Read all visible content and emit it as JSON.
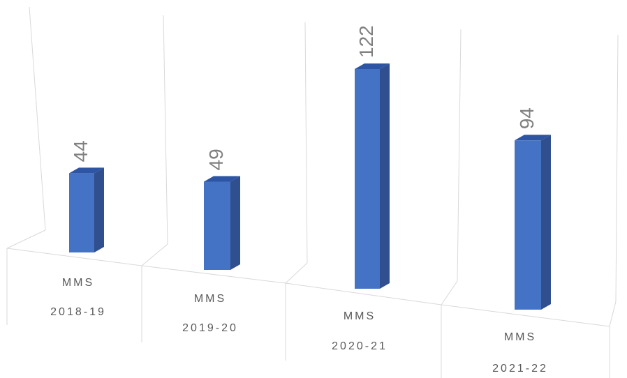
{
  "chart_data": {
    "type": "bar",
    "categories": [
      [
        "MMS",
        "2018-19"
      ],
      [
        "MMS",
        "2019-20"
      ],
      [
        "MMS",
        "2020-21"
      ],
      [
        "MMS",
        "2021-22"
      ]
    ],
    "values": [
      44,
      49,
      122,
      94
    ],
    "data_labels": [
      "44",
      "49",
      "122",
      "94"
    ],
    "title": "",
    "xlabel": "",
    "ylabel": "",
    "style": "3d-column",
    "bar_color": "#4472c4",
    "grid": true,
    "legend": "none"
  }
}
